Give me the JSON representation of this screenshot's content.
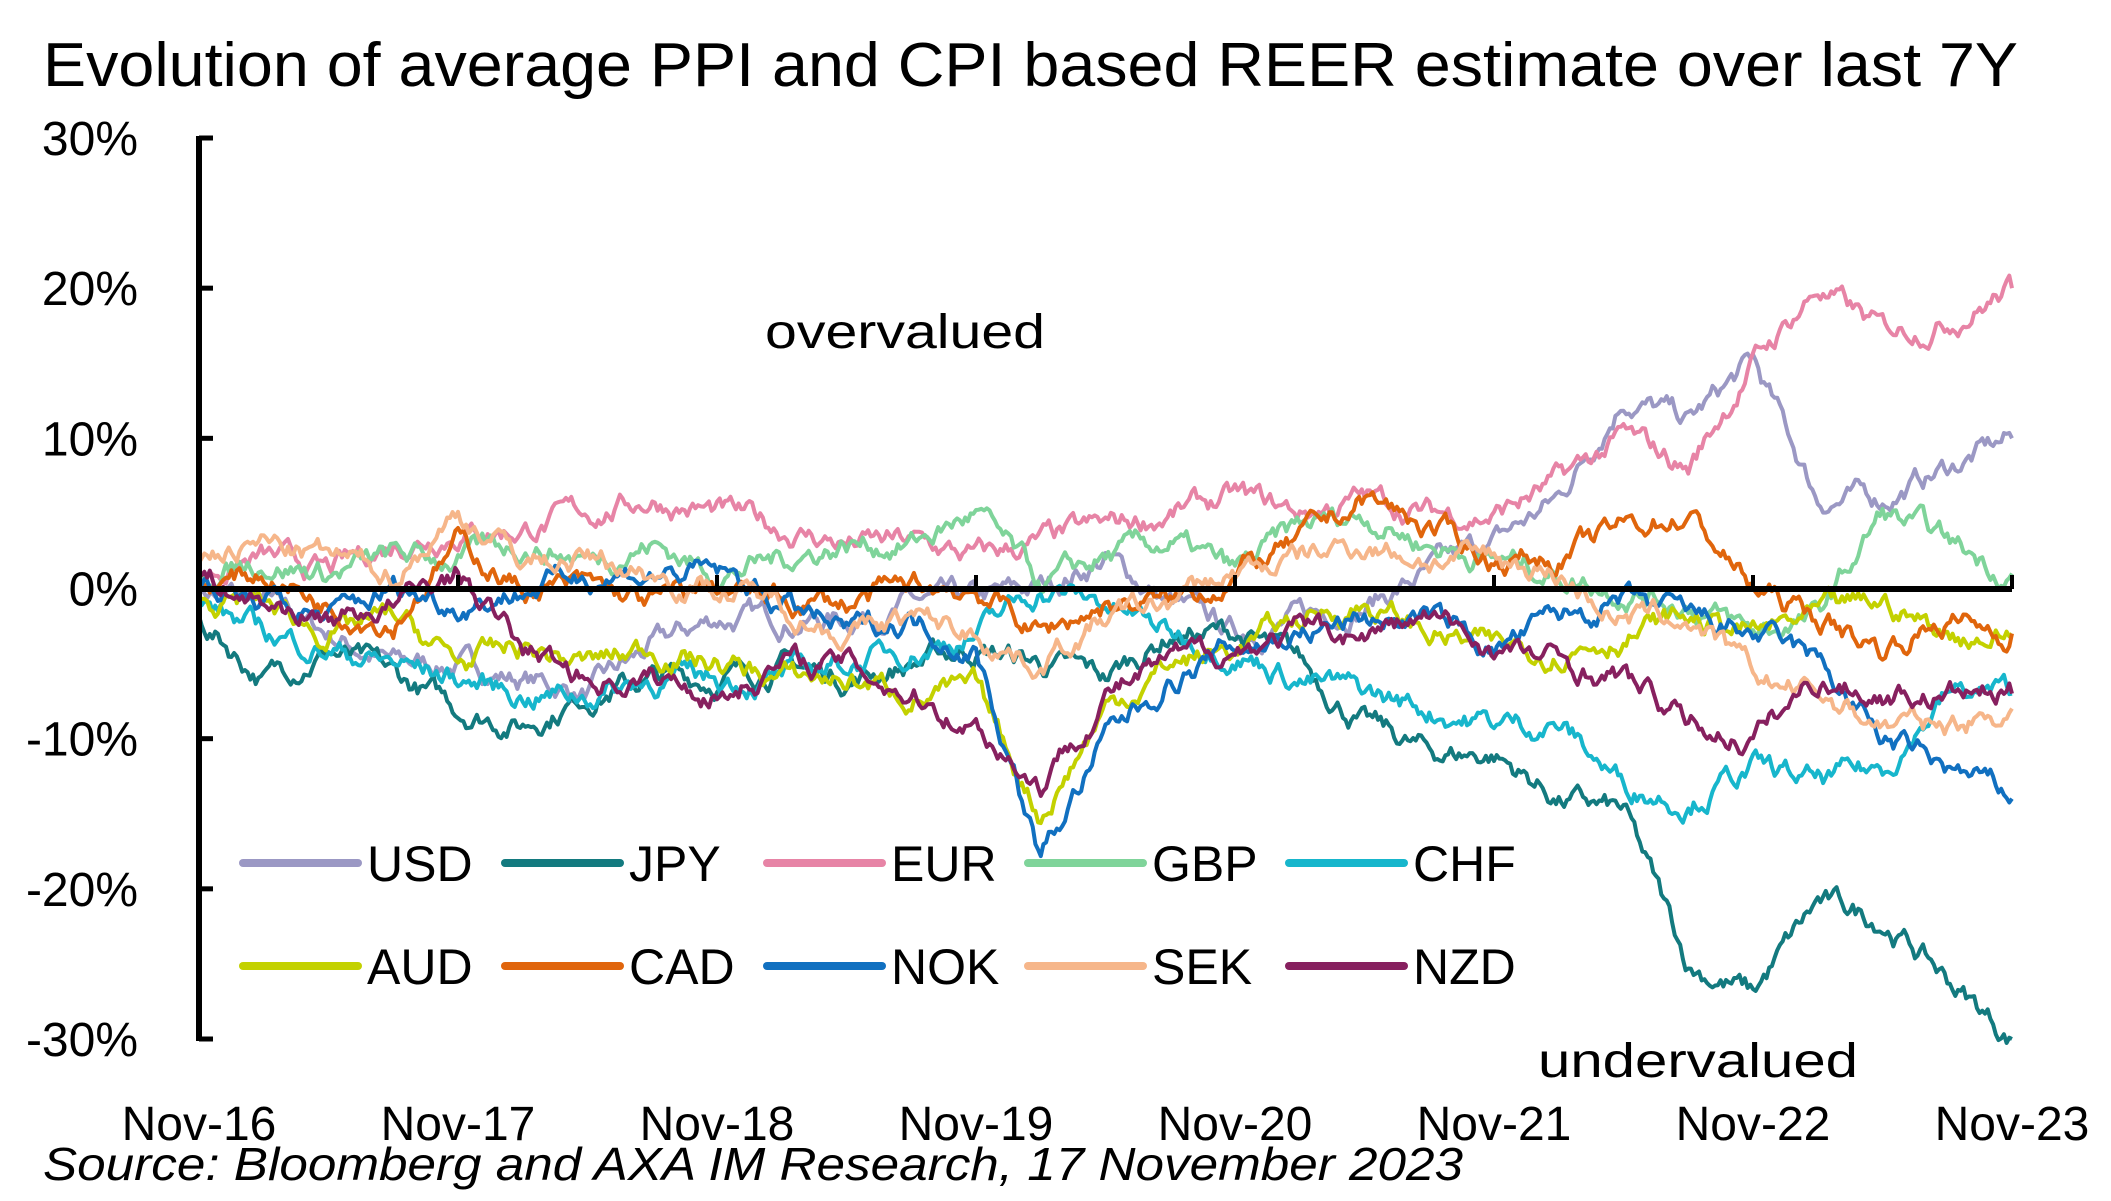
{
  "chart_data": {
    "type": "line",
    "title": "Evolution of average PPI and CPI based REER estimate over last 7Y",
    "xlabel": "",
    "ylabel": "",
    "ylim": [
      -30,
      30
    ],
    "y_ticks": [
      30,
      20,
      10,
      0,
      -10,
      -20,
      -30
    ],
    "y_tick_labels": [
      "30%",
      "20%",
      "10%",
      "0%",
      "-10%",
      "-20%",
      "-30%"
    ],
    "x_tick_labels": [
      "Nov-16",
      "Nov-17",
      "Nov-18",
      "Nov-19",
      "Nov-20",
      "Nov-21",
      "Nov-22",
      "Nov-23"
    ],
    "x_note": "Quarterly approximate values from Nov-16 to Nov-23 (29 points)",
    "grid": false,
    "legend_position": "bottom-left inside plot, 2 rows",
    "annotations": [
      "overvalued",
      "undervalued"
    ],
    "source": "Source: Bloomberg and AXA IM Research, 17 November 2023",
    "series": [
      {
        "name": "USD",
        "color": "#9b98c4",
        "values": [
          0,
          -1,
          -3,
          -5,
          -5,
          -6,
          -7,
          -4,
          -2,
          -2,
          -2,
          -1,
          -1,
          0,
          2,
          -1,
          -3,
          -2,
          -1,
          1,
          3,
          6,
          13,
          11,
          15,
          6,
          6,
          8,
          10
        ]
      },
      {
        "name": "JPY",
        "color": "#137a7f",
        "values": [
          -2,
          -6,
          -4,
          -6,
          -8,
          -9,
          -7,
          -6,
          -6,
          -5,
          -6,
          -5,
          -4,
          -5,
          -6,
          -3,
          -3,
          -5,
          -9,
          -11,
          -11,
          -14,
          -15,
          -25,
          -27,
          -21,
          -22,
          -26,
          -30
        ]
      },
      {
        "name": "EUR",
        "color": "#e784a6",
        "values": [
          1,
          2,
          1,
          3,
          4,
          4,
          5,
          6,
          5,
          4,
          3,
          3,
          2,
          3,
          4,
          5,
          6,
          5,
          6,
          5,
          5,
          7,
          10,
          8,
          15,
          20,
          17,
          18,
          20
        ]
      },
      {
        "name": "GBP",
        "color": "#7fd49a",
        "values": [
          1,
          2,
          1,
          2,
          2,
          3,
          2,
          3,
          1,
          2,
          3,
          3,
          5,
          0,
          2,
          3,
          1,
          4,
          5,
          3,
          2,
          1,
          0,
          -1,
          -3,
          -2,
          5,
          3,
          1
        ]
      },
      {
        "name": "CHF",
        "color": "#17b6cc",
        "values": [
          -1,
          -3,
          -4,
          -5,
          -6,
          -7,
          -7,
          -6,
          -6,
          -6,
          -5,
          -4,
          -3,
          0,
          -1,
          -3,
          -4,
          -6,
          -7,
          -8,
          -9,
          -9,
          -13,
          -14,
          -12,
          -13,
          -12,
          -7,
          -7
        ]
      },
      {
        "name": "AUD",
        "color": "#c3d100",
        "values": [
          -1,
          -1,
          -3,
          -2,
          -5,
          -4,
          -5,
          -4,
          -5,
          -6,
          -6,
          -7,
          -7,
          -15,
          -8,
          -5,
          -4,
          -2,
          -1,
          -3,
          -4,
          -4,
          -3,
          -2,
          -3,
          -2,
          -1,
          -3,
          -3
        ]
      },
      {
        "name": "CAD",
        "color": "#e0650c",
        "values": [
          0,
          1,
          -1,
          -2,
          3,
          0,
          0,
          -1,
          0,
          -1,
          -1,
          0,
          0,
          -3,
          -1,
          -1,
          1,
          3,
          6,
          4,
          2,
          2,
          4,
          5,
          0,
          -2,
          -4,
          -2,
          -3
        ]
      },
      {
        "name": "NOK",
        "color": "#1170c0",
        "values": [
          0,
          -1,
          -2,
          0,
          -1,
          0,
          1,
          1,
          1,
          -1,
          -3,
          -2,
          -4,
          -18,
          -10,
          -6,
          -4,
          -3,
          -2,
          -2,
          -4,
          -2,
          -1,
          -2,
          -3,
          -5,
          -10,
          -12,
          -14
        ]
      },
      {
        "name": "SEK",
        "color": "#f6b68a",
        "values": [
          2,
          3,
          2,
          1,
          5,
          2,
          2,
          1,
          0,
          -1,
          -3,
          -2,
          -3,
          -5,
          -2,
          -1,
          1,
          2,
          3,
          2,
          2,
          1,
          -2,
          -2,
          -6,
          -7,
          -9,
          -9,
          -8
        ]
      },
      {
        "name": "NZD",
        "color": "#87205f",
        "values": [
          1,
          -1,
          -2,
          -1,
          1,
          -4,
          -6,
          -6,
          -7,
          -5,
          -5,
          -7,
          -9,
          -13,
          -7,
          -5,
          -4,
          -3,
          -3,
          -2,
          -4,
          -5,
          -6,
          -9,
          -10,
          -6,
          -7,
          -7,
          -7
        ]
      }
    ]
  }
}
